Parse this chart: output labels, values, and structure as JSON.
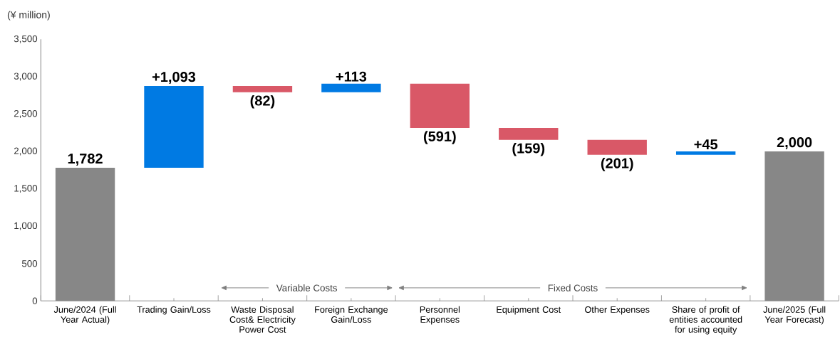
{
  "chart_data": {
    "type": "bar",
    "ylabel": "(¥ million)",
    "categories": [
      "June/2024 (Full Year Actual)",
      "Trading Gain/Loss",
      "Waste Disposal Cost& Electricity Power Cost",
      "Foreign Exchange Gain/Loss",
      "Personnel Expenses",
      "Equipment Cost",
      "Other Expenses",
      "Share of profit of entities accounted for using equity",
      "June/2025 (Full Year Forecast)"
    ],
    "values": [
      1782,
      1093,
      -82,
      113,
      -591,
      -159,
      -201,
      45,
      2000
    ],
    "base": [
      0,
      1782,
      2875,
      2793,
      2906,
      2315,
      2156,
      1955,
      0
    ],
    "colors": [
      "#878787",
      "#007ae3",
      "#d95867",
      "#007ae3",
      "#d95867",
      "#d95867",
      "#d95867",
      "#007ae3",
      "#878787"
    ],
    "value_labels": [
      "1,782",
      "+1,093",
      "(82)",
      "+113",
      "(591)",
      "(159)",
      "(201)",
      "+45",
      "2,000"
    ],
    "ylim": [
      0,
      3500
    ],
    "yticks": [
      0,
      500,
      {
        "value": 1000,
        "label": "1,000"
      },
      {
        "value": 1500,
        "label": "1,500"
      },
      {
        "value": 2000,
        "label": "2,000"
      },
      {
        "value": 2500,
        "label": "2,500"
      },
      {
        "value": 3000,
        "label": "3,000"
      },
      {
        "value": 3500,
        "label": "3,500"
      }
    ],
    "annotations": [
      "Variable Costs",
      "Fixed Costs"
    ],
    "grid": false
  }
}
